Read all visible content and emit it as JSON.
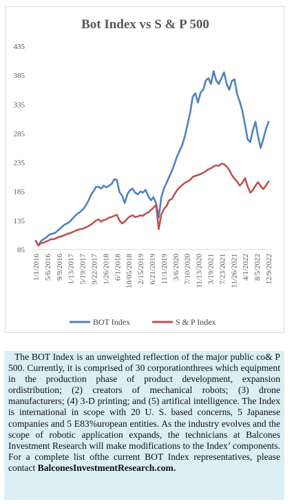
{
  "chart_data": {
    "type": "line",
    "title": "Bot Index vs S & P 500",
    "ylim": [
      85,
      435
    ],
    "yticks": [
      85,
      135,
      185,
      235,
      285,
      335,
      385,
      435
    ],
    "xticks": [
      "1/1/2016",
      "5/6/2016",
      "9/9/2016",
      "1/13/2017",
      "5/19/2017",
      "9/22/2017",
      "1/26/2018",
      "6/1/2018",
      "10/05/2018",
      "2/15/2019",
      "6/21/2019",
      "11/1/2019",
      "3/6/2020",
      "7/10/2020",
      "11/13/2020",
      "3/19/2021",
      "7/23/2021",
      "11/26/2021",
      "4/1/2022",
      "8/5/2022",
      "12/9/2022"
    ],
    "grid": false,
    "legend": "bottom",
    "series": [
      {
        "name": "BOT Index",
        "color": "#4f81bd",
        "values": [
          100,
          92,
          100,
          103,
          106,
          110,
          112,
          113,
          116,
          120,
          124,
          128,
          130,
          133,
          138,
          143,
          147,
          150,
          154,
          160,
          168,
          178,
          185,
          193,
          193,
          190,
          195,
          192,
          195,
          198,
          206,
          205,
          184,
          178,
          165,
          180,
          187,
          190,
          183,
          180,
          185,
          183,
          188,
          177,
          170,
          175,
          165,
          140,
          175,
          190,
          200,
          210,
          220,
          232,
          245,
          255,
          265,
          280,
          300,
          320,
          348,
          354,
          338,
          355,
          360,
          376,
          380,
          370,
          392,
          376,
          370,
          380,
          390,
          370,
          360,
          375,
          378,
          352,
          340,
          324,
          300,
          275,
          270,
          290,
          305,
          280,
          260,
          275,
          292,
          305
        ]
      },
      {
        "name": "S & P Index",
        "color": "#c0504d",
        "values": [
          100,
          92,
          96,
          97,
          99,
          101,
          103,
          103,
          105,
          107,
          108,
          110,
          112,
          113,
          115,
          117,
          119,
          120,
          121,
          123,
          125,
          128,
          131,
          135,
          137,
          133,
          136,
          137,
          140,
          141,
          143,
          145,
          135,
          130,
          133,
          138,
          142,
          144,
          141,
          142,
          144,
          143,
          147,
          149,
          153,
          157,
          162,
          120,
          145,
          155,
          160,
          170,
          172,
          180,
          187,
          192,
          196,
          200,
          202,
          205,
          210,
          212,
          213,
          215,
          217,
          220,
          223,
          225,
          228,
          230,
          229,
          233,
          232,
          228,
          222,
          213,
          207,
          202,
          195,
          200,
          208,
          194,
          183,
          187,
          195,
          201,
          194,
          189,
          195,
          202
        ]
      }
    ]
  },
  "description": {
    "text": "The BOT Index is an unweighted reflection of the major public co& P 500. Currently, it is comprised of 30 corporationthrees which equipment in the production phase of product development, expansion ordistribution; (2) creators of mechanical robots; (3) drone manufacturers; (4) 3-D printing; and (5) artifical intelligence. The Index is international in scope with 20 U. S. based concerns, 5 Japanese companies and 5 E83%uropean entities. As the industry evolves and the scope of robotic application expands, the technicians at Balcones Investment Research will make modifications to the Index’ components. For a complete list ofthe current BOT Index representatives, please contact",
    "site": "BalconesInvestmentResearch.com."
  }
}
